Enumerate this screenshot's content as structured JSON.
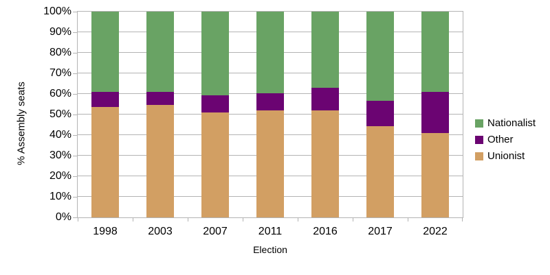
{
  "chart_data": {
    "type": "bar",
    "stacked": true,
    "title": "",
    "xlabel": "Election",
    "ylabel": "% Assembly seats",
    "categories": [
      "1998",
      "2003",
      "2007",
      "2011",
      "2016",
      "2017",
      "2022"
    ],
    "series": [
      {
        "name": "Unionist",
        "color": "#d29f63",
        "values": [
          53.7,
          54.6,
          50.9,
          51.9,
          51.9,
          44.4,
          41.1
        ]
      },
      {
        "name": "Other",
        "color": "#6b0472",
        "values": [
          7.4,
          6.5,
          8.3,
          8.3,
          11.1,
          12.2,
          20.0
        ]
      },
      {
        "name": "Nationalist",
        "color": "#69a364",
        "values": [
          38.9,
          38.9,
          40.7,
          39.8,
          37.0,
          43.3,
          38.9
        ]
      }
    ],
    "ylim": [
      0,
      100
    ],
    "yticks": [
      {
        "value": 0,
        "label": "0%"
      },
      {
        "value": 10,
        "label": "10%"
      },
      {
        "value": 20,
        "label": "20%"
      },
      {
        "value": 30,
        "label": "30%"
      },
      {
        "value": 40,
        "label": "40%"
      },
      {
        "value": 50,
        "label": "50%"
      },
      {
        "value": 60,
        "label": "60%"
      },
      {
        "value": 70,
        "label": "70%"
      },
      {
        "value": 80,
        "label": "80%"
      },
      {
        "value": 90,
        "label": "90%"
      },
      {
        "value": 100,
        "label": "100%"
      }
    ],
    "grid": true,
    "legend_position": "right",
    "legend_order": [
      "Nationalist",
      "Other",
      "Unionist"
    ],
    "colors": {
      "grid": "#b3b3b3",
      "axis": "#b3b3b3",
      "text": "#000000",
      "background": "#ffffff"
    }
  }
}
